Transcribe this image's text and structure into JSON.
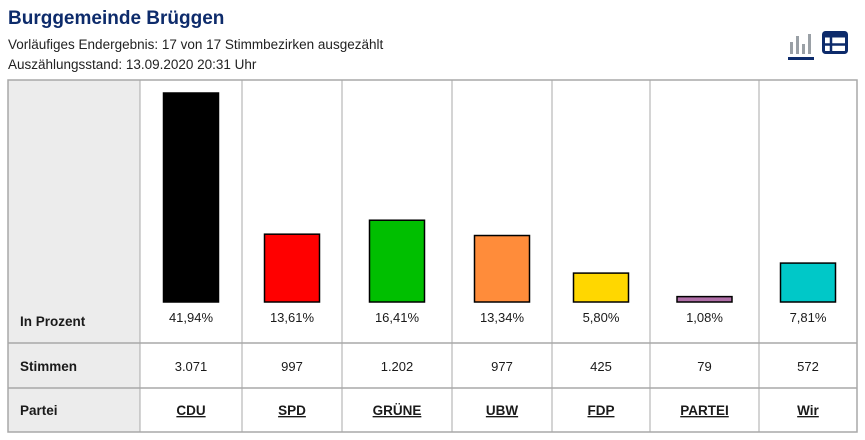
{
  "header": {
    "title": "Burggemeinde Brüggen",
    "subtitle_result": "Vorläufiges Endergebnis: 17 von 17 Stimmbezirken ausgezählt",
    "subtitle_time": "Auszählungsstand: 13.09.2020 20:31 Uhr"
  },
  "toolbar": {
    "chart_view_icon": "bar-chart-icon",
    "table_view_icon": "table-icon"
  },
  "row_labels": {
    "percent": "In Prozent",
    "votes": "Stimmen",
    "party": "Partei"
  },
  "chart_data": {
    "type": "bar",
    "categories": [
      "CDU",
      "SPD",
      "GRÜNE",
      "UBW",
      "FDP",
      "PARTEI",
      "Wir"
    ],
    "values": [
      41.94,
      13.61,
      16.41,
      13.34,
      5.8,
      1.08,
      7.81
    ],
    "value_labels": [
      "41,94%",
      "13,61%",
      "16,41%",
      "13,34%",
      "5,80%",
      "1,08%",
      "7,81%"
    ],
    "votes": [
      "3.071",
      "997",
      "1.202",
      "977",
      "425",
      "79",
      "572"
    ],
    "colors": [
      "#000000",
      "#ff0000",
      "#00bf00",
      "#ff8c3a",
      "#ffd700",
      "#b06fa8",
      "#00c8c8"
    ],
    "ylim": [
      0,
      41.94
    ],
    "grid": false,
    "legend": "none"
  }
}
